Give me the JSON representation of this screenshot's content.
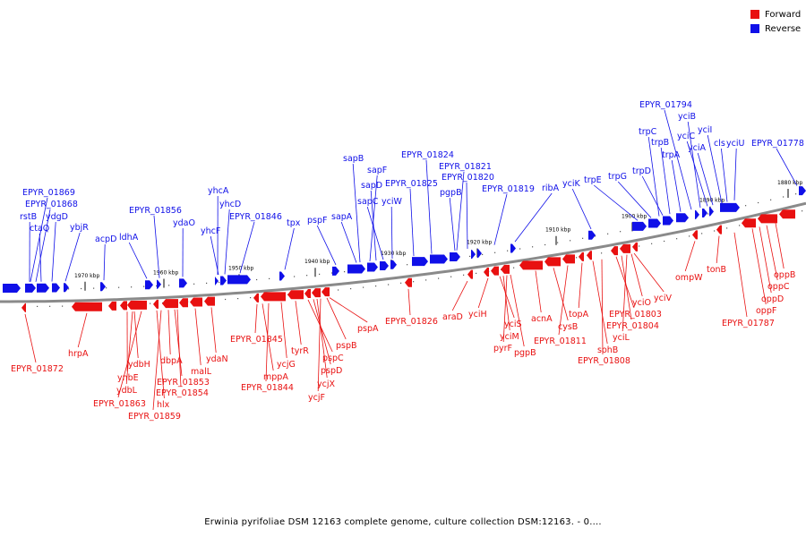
{
  "legend": {
    "forward_label": "Forward",
    "reverse_label": "Reverse",
    "forward_color": "#e81010",
    "reverse_color": "#1010e8"
  },
  "caption": "Erwinia pyrifoliae DSM 12163 complete genome, culture collection DSM:12163. - 0....",
  "ruler_ticks": [
    "1970 kbp",
    "1960 kbp",
    "1950 kbp",
    "1940 kbp",
    "1930 kbp",
    "1920 kbp",
    "1910 kbp",
    "1900 kbp",
    "1890 kbp",
    "1880 kbp"
  ],
  "reverse_genes": [
    "EPYR_01869",
    "EPYR_01868",
    "rstB",
    "ctaQ",
    "ydgD",
    "ybjR",
    "acpD",
    "ldhA",
    "EPYR_01856",
    "ydaO",
    "yhcA",
    "yhcD",
    "yhcF",
    "EPYR_01846",
    "tpx",
    "pspF",
    "sapA",
    "sapB",
    "sapF",
    "sapD",
    "sapC",
    "yciW",
    "EPYR_01825",
    "EPYR_01824",
    "EPYR_01821",
    "EPYR_01820",
    "pgpB",
    "EPYR_01819",
    "ribA",
    "yciK",
    "trpE",
    "trpG",
    "trpD",
    "trpC",
    "trpB",
    "trpA",
    "EPYR_01794",
    "yciB",
    "yciC",
    "yciA",
    "yciI",
    "cls",
    "yciU",
    "EPYR_01778"
  ],
  "forward_genes": [
    "EPYR_01872",
    "hrpA",
    "ynbE",
    "ydbL",
    "ydbH",
    "EPYR_01863",
    "hlx",
    "EPYR_01859",
    "dbpA",
    "EPYR_01853",
    "EPYR_01854",
    "malL",
    "ydaN",
    "EPYR_01845",
    "mppA",
    "EPYR_01844",
    "ycjG",
    "tyrR",
    "pspC",
    "pspD",
    "ycjX",
    "ycjF",
    "pspB",
    "pspA",
    "EPYR_01826",
    "araD",
    "yciH",
    "yciS",
    "yciM",
    "pyrF",
    "pgpB",
    "acnA",
    "cysB",
    "EPYR_01811",
    "topA",
    "sohB",
    "EPYR_01808",
    "EPYR_01803",
    "EPYR_01804",
    "yciL",
    "yciO",
    "yciV",
    "ompW",
    "tonB",
    "EPYR_01787",
    "oppF",
    "oppD",
    "oppC",
    "oppB"
  ]
}
